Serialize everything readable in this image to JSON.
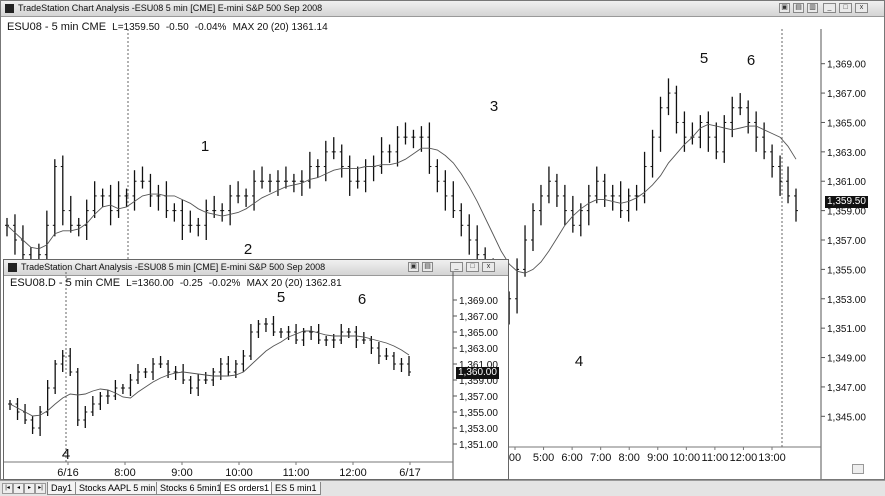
{
  "main": {
    "title": "TradeStation Chart Analysis -ESU08 5 min [CME] E-mini S&P 500 Sep 2008",
    "header": {
      "symbol": "ESU08 - 5 min CME",
      "last": "L=1359.50",
      "change": "-0.50",
      "pct": "-0.04%",
      "ma": "MAX 20 (20) 1361.14"
    },
    "price_label": "1,359.50",
    "window_buttons": [
      "▣",
      "▤",
      "▥",
      "_",
      "□",
      "x"
    ]
  },
  "inset": {
    "title": "TradeStation Chart Analysis -ESU08 5 min [CME] E-mini S&P 500 Sep 2008",
    "header": {
      "symbol": "ESU08.D - 5 min CME",
      "last": "L=1360.00",
      "change": "-0.25",
      "pct": "-0.02%",
      "ma": "MAX 20 (20) 1362.81"
    },
    "price_label": "1,360.00",
    "window_buttons": [
      "▣",
      "▤",
      "_",
      "□",
      "x"
    ]
  },
  "tabs": [
    "Day1",
    "Stocks AAPL 5 min1",
    "Stocks 6 5min1",
    "ES orders1",
    "ES 5 min1"
  ],
  "active_tab": 3,
  "chart_data": [
    {
      "type": "candlestick",
      "title": "ESU08 - 5 min CME",
      "y_ticks": [
        "1,369.00",
        "1,367.00",
        "1,365.00",
        "1,363.00",
        "1,361.00",
        "1,359.00",
        "1,357.00",
        "1,355.00",
        "1,353.00",
        "1,351.00",
        "1,349.00",
        "1,347.00",
        "1,345.00"
      ],
      "x_ticks": [
        "00",
        "5:00",
        "6:00",
        "7:00",
        "8:00",
        "9:00",
        "10:00",
        "11:00",
        "12:00",
        "13:00"
      ],
      "ylim": [
        1344,
        1370
      ],
      "wave_labels": [
        "1",
        "2",
        "3",
        "4",
        "5",
        "6"
      ],
      "series": [
        {
          "name": "price",
          "close": [
            1358,
            1357,
            1356,
            1355,
            1356,
            1358,
            1362,
            1359,
            1358,
            1358,
            1359,
            1360,
            1360,
            1359,
            1360,
            1360,
            1361,
            1361,
            1360,
            1360,
            1359,
            1359,
            1358,
            1358,
            1358,
            1359,
            1359,
            1359,
            1360,
            1360,
            1360,
            1361,
            1361,
            1361,
            1361,
            1361,
            1361,
            1361,
            1362,
            1362,
            1363,
            1363,
            1362,
            1361,
            1361,
            1362,
            1362,
            1363,
            1363,
            1364,
            1364,
            1364,
            1364,
            1362,
            1361,
            1360,
            1359,
            1358,
            1357,
            1356,
            1355,
            1353,
            1352,
            1353,
            1355,
            1357,
            1359,
            1360,
            1361,
            1360,
            1359,
            1358,
            1359,
            1360,
            1361,
            1360,
            1360,
            1359,
            1360,
            1360,
            1362,
            1364,
            1366,
            1367,
            1365,
            1364,
            1364,
            1365,
            1364,
            1363,
            1365,
            1366,
            1366,
            1365,
            1364,
            1363,
            1362,
            1361,
            1360,
            1359
          ]
        },
        {
          "name": "MAX 20",
          "values": [
            1361.14
          ]
        }
      ]
    },
    {
      "type": "candlestick",
      "title": "ESU08.D - 5 min CME",
      "y_ticks": [
        "1,369.00",
        "1,367.00",
        "1,365.00",
        "1,363.00",
        "1,361.00",
        "1,359.00",
        "1,357.00",
        "1,355.00",
        "1,353.00",
        "1,351.00"
      ],
      "x_ticks": [
        "6/16",
        "8:00",
        "9:00",
        "10:00",
        "11:00",
        "12:00",
        "6/17"
      ],
      "ylim": [
        1350,
        1370
      ],
      "wave_labels": [
        "4",
        "5",
        "6"
      ],
      "series": [
        {
          "name": "price",
          "close": [
            1356,
            1355,
            1354,
            1353,
            1355,
            1358,
            1361,
            1362,
            1360,
            1354,
            1355,
            1356,
            1357,
            1357,
            1358,
            1358,
            1359,
            1360,
            1360,
            1361,
            1361,
            1360,
            1360,
            1359,
            1358,
            1359,
            1359,
            1360,
            1361,
            1360,
            1361,
            1362,
            1365,
            1366,
            1366,
            1365,
            1365,
            1365,
            1364,
            1365,
            1365,
            1364,
            1364,
            1364,
            1365,
            1365,
            1364,
            1364,
            1363,
            1362,
            1362,
            1361,
            1361,
            1360
          ]
        },
        {
          "name": "MAX 20",
          "values": [
            1362.81
          ]
        }
      ]
    }
  ]
}
